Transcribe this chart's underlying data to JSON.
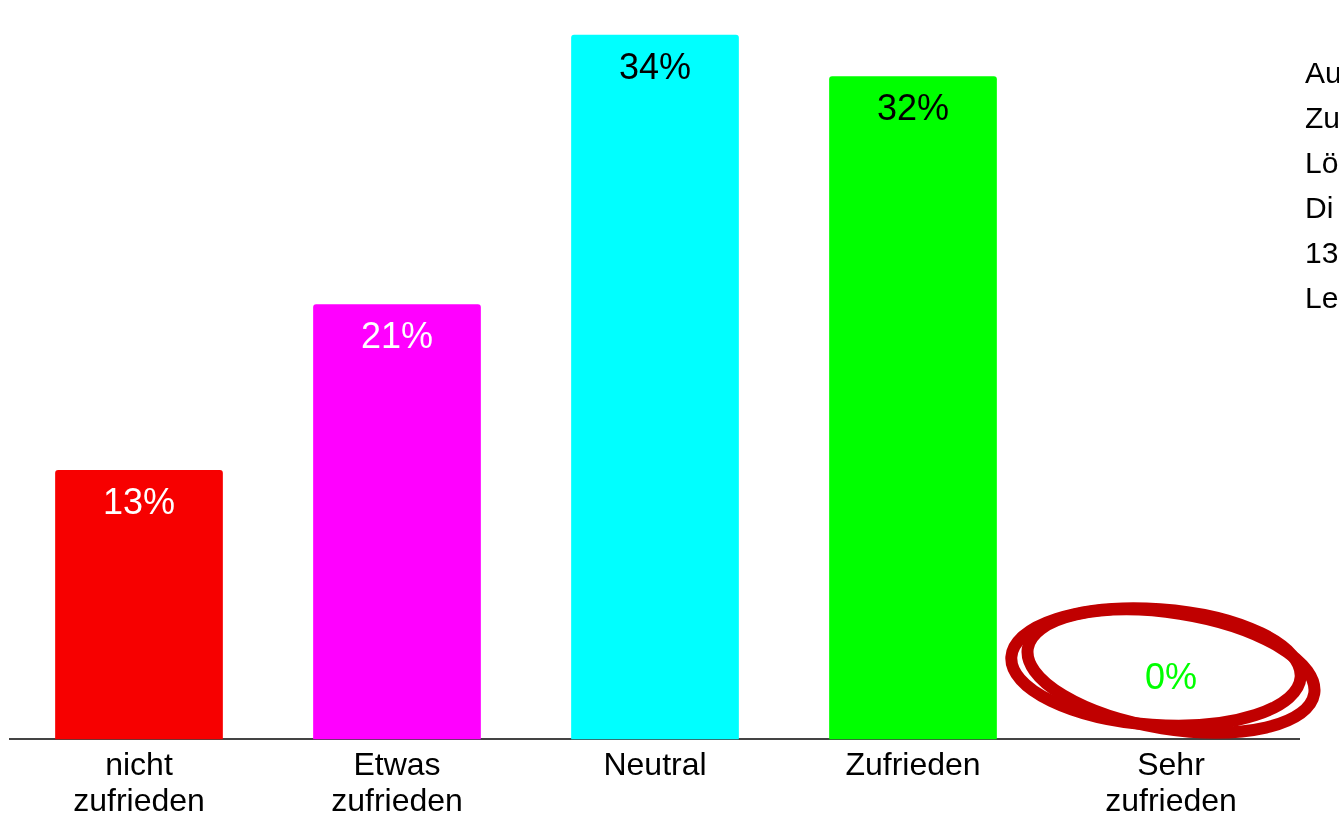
{
  "chart_data": {
    "type": "bar",
    "categories": [
      "nicht zufrieden",
      "Etwas zufrieden",
      "Neutral",
      "Zufrieden",
      "Sehr zufrieden"
    ],
    "values": [
      13,
      21,
      34,
      32,
      0
    ],
    "colors": [
      "#f70000",
      "#ff00ff",
      "#00ffff",
      "#00ff00",
      "#00ff00"
    ],
    "value_labels": [
      "13%",
      "21%",
      "34%",
      "32%",
      "0%"
    ],
    "grid": false,
    "legend": false,
    "annotations": [
      "Au",
      "Zu",
      "Lö",
      "Di",
      "13",
      "Le"
    ]
  }
}
